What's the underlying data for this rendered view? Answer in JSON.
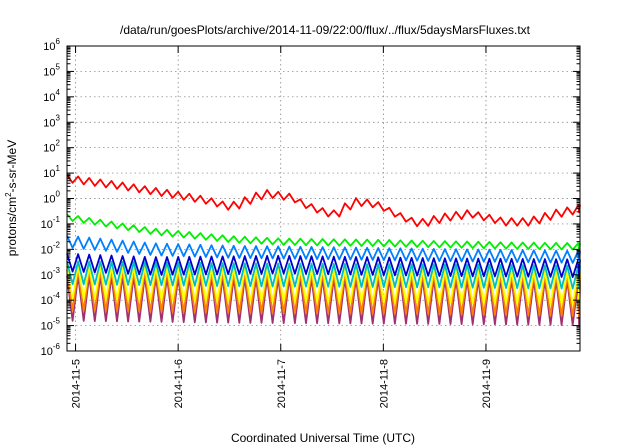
{
  "chart_data": {
    "type": "line",
    "title": "/data/run/goesPlots/archive/2014-11-09/22:00/flux/../flux/5daysMarsFluxes.txt",
    "xlabel": "Coordinated Universal Time (UTC)",
    "ylabel": {
      "base": "protons/cm",
      "sup": "2",
      "rest": "-s-sr-MeV"
    },
    "yscale": "log",
    "ylim": [
      1e-06,
      1000000.0
    ],
    "y_ticks": [
      {
        "value": 1e-06,
        "base": "10",
        "exp": "-6"
      },
      {
        "value": 1e-05,
        "base": "10",
        "exp": "-5"
      },
      {
        "value": 0.0001,
        "base": "10",
        "exp": "-4"
      },
      {
        "value": 0.001,
        "base": "10",
        "exp": "-3"
      },
      {
        "value": 0.01,
        "base": "10",
        "exp": "-2"
      },
      {
        "value": 0.1,
        "base": "10",
        "exp": "-1"
      },
      {
        "value": 1,
        "base": "10",
        "exp": "0"
      },
      {
        "value": 10,
        "base": "10",
        "exp": "1"
      },
      {
        "value": 100,
        "base": "10",
        "exp": "2"
      },
      {
        "value": 1000,
        "base": "10",
        "exp": "3"
      },
      {
        "value": 10000,
        "base": "10",
        "exp": "4"
      },
      {
        "value": 100000,
        "base": "10",
        "exp": "5"
      },
      {
        "value": 1000000,
        "base": "10",
        "exp": "6"
      }
    ],
    "xlim": [
      "2014-11-04T22:00",
      "2014-11-09T22:00"
    ],
    "x_ticks": [
      {
        "label": "2014-11-5",
        "value": "2014-11-05T00:00"
      },
      {
        "label": "2014-11-6",
        "value": "2014-11-06T00:00"
      },
      {
        "label": "2014-11-7",
        "value": "2014-11-07T00:00"
      },
      {
        "label": "2014-11-8",
        "value": "2014-11-08T00:00"
      },
      {
        "label": "2014-11-9",
        "value": "2014-11-09T00:00"
      }
    ],
    "grid": true,
    "legend": "none",
    "series": [
      {
        "color": "#ff0000",
        "pattern": "sawtooth",
        "period_hours": 2.6,
        "ratio": 2.0,
        "points": [
          [
            "2014-11-04T22:00",
            6.0
          ],
          [
            "2014-11-05T10:00",
            3.2
          ],
          [
            "2014-11-05T22:00",
            1.5
          ],
          [
            "2014-11-06T07:00",
            0.8
          ],
          [
            "2014-11-06T12:00",
            0.45
          ],
          [
            "2014-11-06T20:00",
            1.6
          ],
          [
            "2014-11-07T02:00",
            1.1
          ],
          [
            "2014-11-07T06:00",
            0.5
          ],
          [
            "2014-11-07T12:00",
            0.22
          ],
          [
            "2014-11-07T17:00",
            0.75
          ],
          [
            "2014-11-07T22:00",
            0.6
          ],
          [
            "2014-11-08T03:00",
            0.22
          ],
          [
            "2014-11-08T08:00",
            0.1
          ],
          [
            "2014-11-08T14:00",
            0.18
          ],
          [
            "2014-11-08T20:00",
            0.25
          ],
          [
            "2014-11-09T04:00",
            0.12
          ],
          [
            "2014-11-09T10:00",
            0.12
          ],
          [
            "2014-11-09T16:00",
            0.25
          ],
          [
            "2014-11-09T22:00",
            0.4
          ]
        ]
      },
      {
        "color": "#00ee00",
        "pattern": "sawtooth",
        "period_hours": 2.6,
        "ratio": 1.8,
        "points": [
          [
            "2014-11-04T22:00",
            0.18
          ],
          [
            "2014-11-05T18:00",
            0.05
          ],
          [
            "2014-11-06T12:00",
            0.025
          ],
          [
            "2014-11-07T00:00",
            0.02
          ],
          [
            "2014-11-07T20:00",
            0.018
          ],
          [
            "2014-11-08T12:00",
            0.016
          ],
          [
            "2014-11-09T06:00",
            0.014
          ],
          [
            "2014-11-09T22:00",
            0.013
          ]
        ]
      },
      {
        "color": "#0080ff",
        "pattern": "sawtooth",
        "period_hours": 2.6,
        "ratio": 3.0,
        "points": [
          [
            "2014-11-04T22:00",
            0.02
          ],
          [
            "2014-11-05T18:00",
            0.01
          ],
          [
            "2014-11-06T12:00",
            0.008
          ],
          [
            "2014-11-07T12:00",
            0.007
          ],
          [
            "2014-11-08T12:00",
            0.006
          ],
          [
            "2014-11-09T22:00",
            0.005
          ]
        ]
      },
      {
        "color": "#0000cc",
        "pattern": "sawtooth",
        "period_hours": 2.6,
        "ratio": 5.0,
        "points": [
          [
            "2014-11-04T22:00",
            0.003
          ],
          [
            "2014-11-05T18:00",
            0.0022
          ],
          [
            "2014-11-07T00:00",
            0.0025
          ],
          [
            "2014-11-08T12:00",
            0.002
          ],
          [
            "2014-11-09T22:00",
            0.0018
          ]
        ]
      },
      {
        "color": "#00bfbf",
        "pattern": "sawtooth",
        "period_hours": 2.6,
        "ratio": 8.0,
        "points": [
          [
            "2014-11-04T22:00",
            0.0012
          ],
          [
            "2014-11-06T12:00",
            0.001
          ],
          [
            "2014-11-08T12:00",
            0.0009
          ],
          [
            "2014-11-09T22:00",
            0.0008
          ]
        ]
      },
      {
        "color": "#ffff00",
        "pattern": "sawtooth",
        "period_hours": 2.6,
        "ratio": 20.0,
        "points": [
          [
            "2014-11-04T22:00",
            0.0005
          ],
          [
            "2014-11-06T12:00",
            0.0004
          ],
          [
            "2014-11-08T12:00",
            0.00035
          ],
          [
            "2014-11-09T22:00",
            0.0003
          ]
        ]
      },
      {
        "color": "#ff8000",
        "pattern": "sawtooth",
        "period_hours": 2.6,
        "ratio": 40.0,
        "points": [
          [
            "2014-11-04T22:00",
            0.00025
          ],
          [
            "2014-11-06T12:00",
            0.0002
          ],
          [
            "2014-11-08T12:00",
            0.00018
          ],
          [
            "2014-11-09T22:00",
            0.00015
          ]
        ]
      },
      {
        "color": "#a03070",
        "pattern": "sawtooth",
        "period_hours": 2.6,
        "ratio": 60.0,
        "points": [
          [
            "2014-11-04T22:00",
            0.00012
          ],
          [
            "2014-11-06T12:00",
            0.0001
          ],
          [
            "2014-11-08T12:00",
            9e-05
          ],
          [
            "2014-11-09T22:00",
            8e-05
          ]
        ]
      }
    ]
  }
}
